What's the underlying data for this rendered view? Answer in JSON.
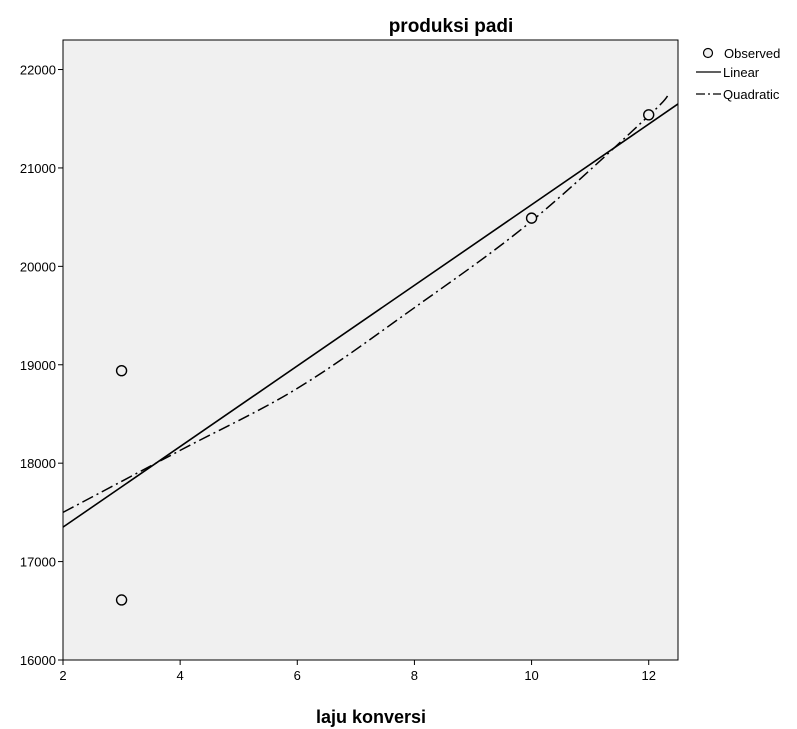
{
  "chart_data": {
    "type": "scatter",
    "title": "produksi padi",
    "xlabel": "laju konversi",
    "ylabel": "",
    "xlim": [
      2,
      12.5
    ],
    "ylim": [
      16000,
      22300
    ],
    "xticks": [
      2,
      4,
      6,
      8,
      10,
      12
    ],
    "yticks": [
      16000,
      17000,
      18000,
      19000,
      20000,
      21000,
      22000
    ],
    "x_tick_labels": [
      "2",
      "4",
      "6",
      "8",
      "10",
      "12"
    ],
    "y_tick_labels": [
      "16000",
      "17000",
      "18000",
      "19000",
      "20000",
      "21000",
      "22000"
    ],
    "grid": false,
    "legend_position": "top-right",
    "observed": {
      "name": "Observed",
      "points": [
        {
          "x": 3,
          "y": 18940
        },
        {
          "x": 3,
          "y": 16610
        },
        {
          "x": 10,
          "y": 20490
        },
        {
          "x": 12,
          "y": 21540
        }
      ]
    },
    "linear": {
      "name": "Linear",
      "line": [
        {
          "x": 2,
          "y": 17350
        },
        {
          "x": 12.5,
          "y": 21650
        }
      ]
    },
    "quadratic": {
      "name": "Quadratic",
      "curve": [
        {
          "x": 2,
          "y": 17500
        },
        {
          "x": 4,
          "y": 18130
        },
        {
          "x": 6,
          "y": 18760
        },
        {
          "x": 8,
          "y": 19580
        },
        {
          "x": 10,
          "y": 20460
        },
        {
          "x": 12,
          "y": 21530
        },
        {
          "x": 12.35,
          "y": 21760
        }
      ]
    },
    "colors": {
      "plot_background": "#f0f0f0",
      "line": "#000000",
      "marker_fill": "#f0f0f0"
    }
  }
}
